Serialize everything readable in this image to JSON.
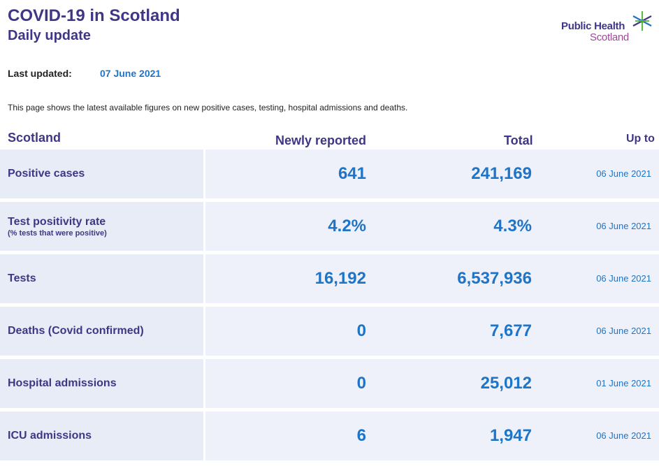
{
  "header": {
    "title": "COVID-19 in Scotland",
    "subtitle": "Daily update"
  },
  "logo": {
    "line1": "Public Health",
    "line2": "Scotland",
    "colors": {
      "primary": "#3f3685",
      "secondary": "#9b4a96",
      "star_green": "#5fb848",
      "star_blue": "#1e74c6"
    }
  },
  "meta": {
    "last_updated_label": "Last updated:",
    "last_updated_value": "07 June 2021",
    "intro": "This page shows the latest available figures on new positive cases, testing, hospital admissions and deaths."
  },
  "table": {
    "columns": {
      "region": "Scotland",
      "newly_reported": "Newly reported",
      "total": "Total",
      "up_to": "Up to"
    },
    "rows": [
      {
        "label": "Positive cases",
        "sublabel": "",
        "new": "641",
        "total": "241,169",
        "up_to": "06 June 2021"
      },
      {
        "label": "Test positivity rate",
        "sublabel": "(% tests that were positive)",
        "new": "4.2%",
        "total": "4.3%",
        "up_to": "06 June 2021"
      },
      {
        "label": "Tests",
        "sublabel": "",
        "new": "16,192",
        "total": "6,537,936",
        "up_to": "06 June 2021"
      },
      {
        "label": "Deaths (Covid confirmed)",
        "sublabel": "",
        "new": "0",
        "total": "7,677",
        "up_to": "06 June 2021"
      },
      {
        "label": "Hospital admissions",
        "sublabel": "",
        "new": "0",
        "total": "25,012",
        "up_to": "01 June 2021"
      },
      {
        "label": "ICU admissions",
        "sublabel": "",
        "new": "6",
        "total": "1,947",
        "up_to": "06 June 2021"
      }
    ]
  },
  "colors": {
    "heading": "#3f3685",
    "value": "#1e74c6",
    "label_bg": "#e8ecf6",
    "value_bg": "#eef1f9"
  }
}
